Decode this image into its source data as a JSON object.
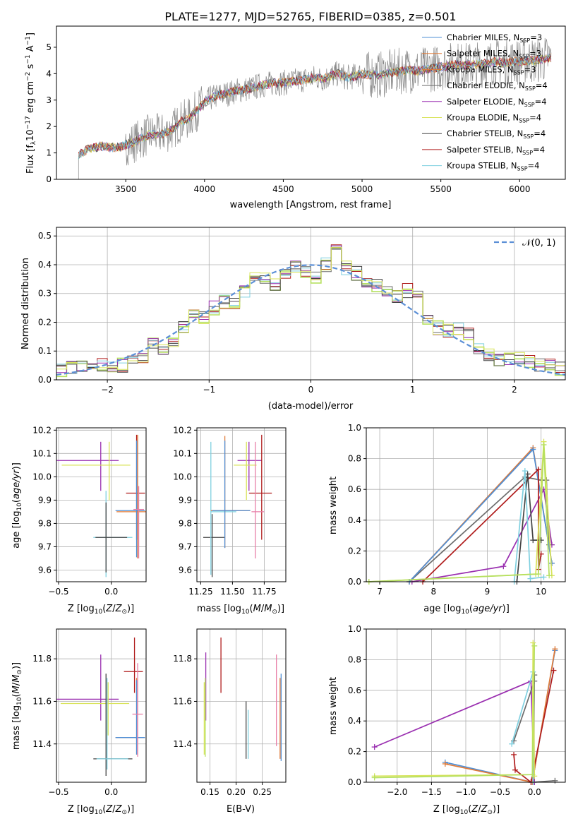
{
  "figure_title": "PLATE=1277, MJD=52765, FIBERID=0385, z=0.501",
  "colors": {
    "chabrier_miles": "#4f8fd6",
    "salpeter_miles": "#e07b39",
    "kroupa_miles": "#e07b39",
    "chabrier_elodie": "#6c6c6c",
    "salpeter_elodie": "#9a2fb0",
    "kroupa_elodie": "#d8e35a",
    "chabrier_stelib": "#444444",
    "salpeter_stelib": "#b01c1c",
    "kroupa_stelib": "#7fd0e0",
    "gaussian": "#5b8fd6",
    "pink": "#e87fa8",
    "lime": "#b5e060"
  },
  "chart_data": [
    {
      "id": "spectrum",
      "type": "line",
      "title": "PLATE=1277, MJD=52765, FIBERID=0385, z=0.501",
      "xlabel": "wavelength [Angstrom, rest frame]",
      "ylabel": "Flux [f_λ 10^-17 erg cm^-2 s^-1 A^-1]",
      "xlim": [
        3060,
        6290
      ],
      "ylim": [
        0,
        5.8
      ],
      "xticks": [
        "3500",
        "4000",
        "4500",
        "5000",
        "5500",
        "6000"
      ],
      "yticks": [
        "0",
        "1",
        "2",
        "3",
        "4",
        "5"
      ],
      "grid": false,
      "legend_position": "top-right",
      "legend": [
        "Chabrier MILES, N_SSP=3",
        "Salpeter MILES, N_SSP=3",
        "Kroupa MILES, N_SSP=3",
        "Chabrier ELODIE, N_SSP=4",
        "Salpeter ELODIE, N_SSP=4",
        "Kroupa ELODIE, N_SSP=4",
        "Chabrier STELIB, N_SSP=4",
        "Salpeter STELIB, N_SSP=4",
        "Kroupa STELIB, N_SSP=4"
      ],
      "model_continuum": {
        "x": [
          3200,
          3220,
          3260,
          3300,
          3350,
          3400,
          3450,
          3500,
          3550,
          3600,
          3650,
          3700,
          3750,
          3800,
          3850,
          3900,
          3950,
          4000,
          4050,
          4100,
          4150,
          4200,
          4250,
          4300,
          4350,
          4400,
          4450,
          4500,
          4550,
          4600,
          4650,
          4700,
          4750,
          4800,
          4850,
          4900,
          4950,
          5000,
          5050,
          5100,
          5150,
          5200,
          5250,
          5300,
          5350,
          5400,
          5450,
          5500,
          5550,
          5600,
          5650,
          5700,
          5750,
          5800,
          5850,
          5900,
          5950,
          6000,
          6050,
          6100,
          6150,
          6200
        ],
        "y": [
          0.9,
          1.0,
          1.15,
          1.2,
          1.25,
          1.2,
          1.22,
          1.3,
          1.4,
          1.55,
          1.7,
          1.7,
          1.75,
          1.9,
          2.2,
          2.3,
          2.6,
          2.9,
          3.1,
          3.2,
          3.25,
          3.35,
          3.4,
          3.45,
          3.55,
          3.6,
          3.65,
          3.65,
          3.7,
          3.75,
          3.8,
          3.85,
          3.8,
          3.9,
          4.0,
          3.85,
          3.9,
          4.0,
          3.95,
          3.95,
          4.0,
          4.05,
          4.1,
          4.15,
          4.1,
          4.15,
          4.2,
          4.25,
          4.3,
          4.35,
          4.3,
          4.35,
          4.35,
          4.4,
          4.45,
          4.4,
          4.45,
          4.45,
          4.5,
          4.5,
          4.55,
          4.6
        ]
      }
    },
    {
      "id": "residuals",
      "type": "line",
      "xlabel": "(data-model)/error",
      "ylabel": "Normed distribution",
      "xlim": [
        -2.5,
        2.5
      ],
      "ylim": [
        0,
        0.53
      ],
      "xticks": [
        "−2",
        "−1",
        "0",
        "1",
        "2"
      ],
      "yticks": [
        "0.0",
        "0.1",
        "0.2",
        "0.3",
        "0.4",
        "0.5"
      ],
      "grid": true,
      "legend_position": "top-right",
      "legend": [
        "𝒩(0, 1)"
      ],
      "hist_bins": [
        -2.5,
        -2.4,
        -2.3,
        -2.2,
        -2.1,
        -2.0,
        -1.9,
        -1.8,
        -1.7,
        -1.6,
        -1.5,
        -1.4,
        -1.3,
        -1.2,
        -1.1,
        -1.0,
        -0.9,
        -0.8,
        -0.7,
        -0.6,
        -0.5,
        -0.4,
        -0.3,
        -0.2,
        -0.1,
        0.0,
        0.1,
        0.2,
        0.3,
        0.4,
        0.5,
        0.6,
        0.7,
        0.8,
        0.9,
        1.0,
        1.1,
        1.2,
        1.3,
        1.4,
        1.5,
        1.6,
        1.7,
        1.8,
        1.9,
        2.0,
        2.1,
        2.2,
        2.3,
        2.4
      ],
      "hist_values": [
        0.03,
        0.04,
        0.05,
        0.04,
        0.05,
        0.04,
        0.05,
        0.06,
        0.07,
        0.12,
        0.11,
        0.13,
        0.18,
        0.24,
        0.22,
        0.25,
        0.27,
        0.26,
        0.31,
        0.37,
        0.36,
        0.33,
        0.37,
        0.39,
        0.38,
        0.36,
        0.4,
        0.46,
        0.39,
        0.37,
        0.34,
        0.33,
        0.3,
        0.29,
        0.31,
        0.29,
        0.2,
        0.18,
        0.17,
        0.18,
        0.16,
        0.11,
        0.09,
        0.07,
        0.07,
        0.08,
        0.06,
        0.05,
        0.06,
        0.04
      ]
    },
    {
      "id": "age_vs_Z",
      "type": "scatter",
      "xlabel": "Z [log10(Z/Z⊙)]",
      "ylabel": "age  [log10(age/yr)]",
      "xlim": [
        -0.52,
        0.33
      ],
      "ylim": [
        9.55,
        10.21
      ],
      "xticks": [
        "−0.5",
        "0.0"
      ],
      "yticks": [
        "9.6",
        "9.7",
        "9.8",
        "9.9",
        "10.0",
        "10.1",
        "10.2"
      ],
      "grid": true
    },
    {
      "id": "age_vs_mass",
      "type": "scatter",
      "xlabel": "mass [log10(M/M⊙)]",
      "xlim": [
        11.22,
        11.92
      ],
      "ylim": [
        9.55,
        10.21
      ],
      "xticks": [
        "11.25",
        "11.50",
        "11.75"
      ],
      "yticks": [
        "9.6",
        "9.7",
        "9.8",
        "9.9",
        "10.0",
        "10.1",
        "10.2"
      ],
      "grid": true
    },
    {
      "id": "mass_weight_vs_age",
      "type": "line",
      "xlabel": "age  [log10(age/yr)]",
      "ylabel": "mass weight",
      "xlim": [
        6.75,
        10.45
      ],
      "ylim": [
        0,
        1.0
      ],
      "xticks": [
        "7",
        "8",
        "9",
        "10"
      ],
      "yticks": [
        "0.0",
        "0.2",
        "0.4",
        "0.6",
        "0.8",
        "1.0"
      ],
      "grid": true
    },
    {
      "id": "mass_vs_Z",
      "type": "scatter",
      "xlabel": "Z [log10(Z/Z⊙)]",
      "ylabel": "mass [log10(M/M⊙)]",
      "xlim": [
        -0.52,
        0.33
      ],
      "ylim": [
        11.22,
        11.94
      ],
      "xticks": [
        "−0.5",
        "0.0"
      ],
      "yticks": [
        "11.4",
        "11.6",
        "11.8"
      ],
      "grid": true
    },
    {
      "id": "mass_vs_ebv",
      "type": "scatter",
      "xlabel": "E(B-V)",
      "xlim": [
        0.125,
        0.295
      ],
      "ylim": [
        11.22,
        11.94
      ],
      "xticks": [
        "0.15",
        "0.20",
        "0.25"
      ],
      "yticks": [
        "11.4",
        "11.6",
        "11.8"
      ],
      "grid": true
    },
    {
      "id": "mass_weight_vs_Z",
      "type": "line",
      "xlabel": "Z [log10(Z/Z⊙)]",
      "ylabel": "mass weight",
      "xlim": [
        -2.45,
        0.45
      ],
      "ylim": [
        0,
        1.0
      ],
      "xticks": [
        "−2.0",
        "−1.5",
        "−1.0",
        "−0.5",
        "0.0"
      ],
      "yticks": [
        "0.0",
        "0.2",
        "0.4",
        "0.6",
        "0.8",
        "1.0"
      ],
      "grid": true
    }
  ]
}
